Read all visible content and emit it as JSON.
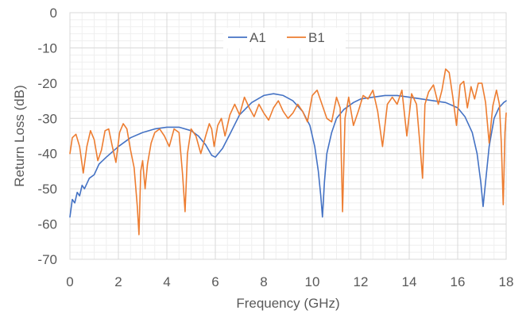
{
  "chart_data": {
    "type": "line",
    "title": "",
    "xlabel": "Frequency (GHz)",
    "ylabel": "Return Loss (dB)",
    "xlim": [
      0,
      18
    ],
    "ylim": [
      -70,
      0
    ],
    "xticks": [
      0,
      2,
      4,
      6,
      8,
      10,
      12,
      14,
      16,
      18
    ],
    "yticks": [
      0,
      -10,
      -20,
      -30,
      -40,
      -50,
      -60,
      -70
    ],
    "grid": true,
    "minor_grid": true,
    "legend": "top-center",
    "series": [
      {
        "name": "A1",
        "color": "#4472c4",
        "x": [
          0.0,
          0.1,
          0.2,
          0.3,
          0.4,
          0.5,
          0.6,
          0.8,
          1.0,
          1.2,
          1.5,
          2.0,
          2.5,
          3.0,
          3.5,
          4.0,
          4.5,
          5.0,
          5.3,
          5.6,
          5.85,
          6.0,
          6.3,
          6.6,
          7.0,
          7.5,
          8.0,
          8.4,
          8.8,
          9.2,
          9.6,
          9.9,
          10.1,
          10.25,
          10.35,
          10.42,
          10.5,
          10.6,
          10.8,
          11.0,
          11.3,
          11.7,
          12.0,
          12.5,
          13.0,
          13.5,
          14.0,
          14.5,
          15.0,
          15.5,
          16.0,
          16.3,
          16.6,
          16.8,
          16.95,
          17.05,
          17.15,
          17.3,
          17.5,
          17.7,
          17.9,
          18.0
        ],
        "y": [
          -58,
          -53,
          -54,
          -51,
          -52,
          -49,
          -50,
          -47,
          -46,
          -43,
          -41,
          -38,
          -35.5,
          -34,
          -33,
          -32.5,
          -32.5,
          -33.5,
          -35,
          -37.5,
          -40.5,
          -41,
          -38.5,
          -34.5,
          -29,
          -25.5,
          -23.5,
          -23,
          -23.5,
          -25,
          -28,
          -32,
          -38,
          -45,
          -52,
          -58,
          -48,
          -40,
          -34,
          -30,
          -27.5,
          -25.5,
          -24.5,
          -24,
          -23.5,
          -23.5,
          -24,
          -24.5,
          -25,
          -25.5,
          -27,
          -29.5,
          -34,
          -40,
          -48,
          -55,
          -48,
          -38,
          -30,
          -27,
          -25.5,
          -25
        ]
      },
      {
        "name": "B1",
        "color": "#ed7d31",
        "x": [
          0.0,
          0.1,
          0.25,
          0.4,
          0.55,
          0.7,
          0.85,
          1.0,
          1.15,
          1.3,
          1.45,
          1.6,
          1.75,
          1.9,
          2.05,
          2.2,
          2.35,
          2.5,
          2.65,
          2.78,
          2.85,
          2.92,
          3.0,
          3.1,
          3.2,
          3.35,
          3.5,
          3.7,
          3.9,
          4.1,
          4.3,
          4.5,
          4.65,
          4.75,
          4.85,
          5.0,
          5.2,
          5.4,
          5.6,
          5.75,
          5.85,
          5.95,
          6.1,
          6.25,
          6.4,
          6.6,
          6.8,
          7.0,
          7.2,
          7.4,
          7.6,
          7.8,
          8.0,
          8.2,
          8.4,
          8.6,
          8.8,
          9.0,
          9.2,
          9.4,
          9.6,
          9.8,
          10.0,
          10.2,
          10.4,
          10.6,
          10.8,
          11.0,
          11.15,
          11.25,
          11.35,
          11.5,
          11.7,
          11.9,
          12.1,
          12.3,
          12.5,
          12.7,
          12.9,
          13.1,
          13.3,
          13.5,
          13.7,
          13.9,
          14.1,
          14.3,
          14.45,
          14.55,
          14.65,
          14.8,
          15.0,
          15.2,
          15.35,
          15.5,
          15.65,
          15.8,
          15.95,
          16.1,
          16.25,
          16.4,
          16.55,
          16.7,
          16.85,
          17.0,
          17.15,
          17.3,
          17.45,
          17.6,
          17.72,
          17.8,
          17.88,
          17.95,
          18.0
        ],
        "y": [
          -40,
          -35.5,
          -34.5,
          -38,
          -45.5,
          -38,
          -33.5,
          -36,
          -42,
          -39,
          -33.5,
          -33,
          -38,
          -42.5,
          -34,
          -31.5,
          -33,
          -39,
          -44,
          -55,
          -63,
          -45,
          -42,
          -50,
          -43,
          -37,
          -34,
          -33,
          -35,
          -38,
          -33,
          -34,
          -46,
          -56.5,
          -40,
          -33,
          -35,
          -40,
          -35,
          -31.5,
          -33,
          -38,
          -32,
          -30,
          -35,
          -29,
          -26,
          -29,
          -24,
          -27,
          -29.5,
          -26,
          -28.5,
          -30.5,
          -27,
          -25,
          -28,
          -30,
          -28.5,
          -26,
          -28,
          -31,
          -23.5,
          -22,
          -26,
          -30,
          -31,
          -24,
          -27,
          -56.5,
          -30,
          -24,
          -32,
          -28,
          -23.5,
          -24.5,
          -22,
          -28,
          -38,
          -26,
          -24,
          -26,
          -22,
          -35,
          -23,
          -26,
          -38,
          -47,
          -26,
          -22.5,
          -20.5,
          -26,
          -22,
          -16,
          -17,
          -24,
          -32,
          -20.5,
          -19.5,
          -27,
          -21,
          -24.5,
          -20,
          -20,
          -25.5,
          -37,
          -26.5,
          -22,
          -26,
          -37,
          -54.5,
          -34,
          -28.5
        ]
      }
    ]
  }
}
